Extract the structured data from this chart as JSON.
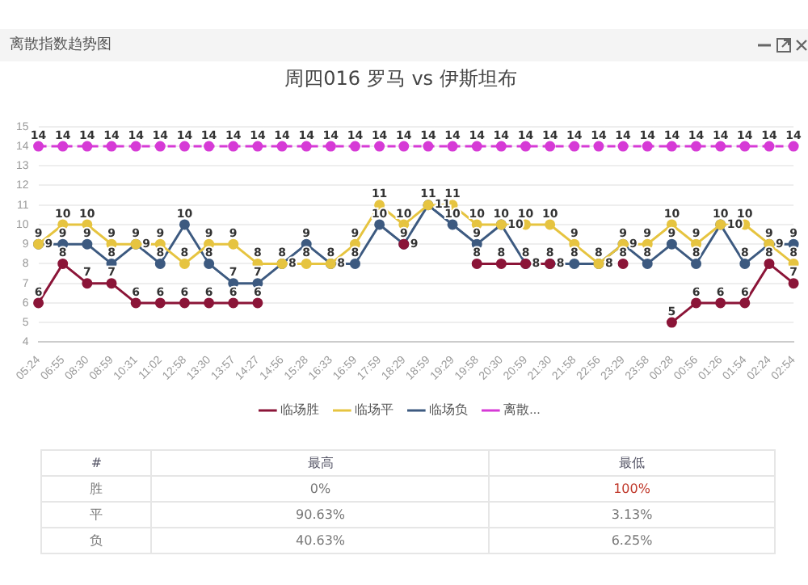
{
  "chart_data": [
    {
      "type": "line",
      "title": "周四016 罗马 vs 伊斯坦布",
      "annotations": [
        "离散指数趋势图"
      ],
      "categories": [
        "05:24",
        "06:55",
        "08:30",
        "08:59",
        "10:31",
        "11:02",
        "12:58",
        "13:30",
        "13:57",
        "14:27",
        "14:56",
        "15:28",
        "16:33",
        "16:59",
        "17:59",
        "18:29",
        "18:59",
        "19:29",
        "19:58",
        "20:30",
        "20:59",
        "21:30",
        "21:58",
        "22:56",
        "23:29",
        "23:58",
        "00:28",
        "00:56",
        "01:26",
        "01:54",
        "02:24",
        "02:54"
      ],
      "series": [
        {
          "name": "临场胜",
          "color": "#8b1538",
          "values": [
            6,
            8,
            7,
            7,
            6,
            6,
            6,
            6,
            6,
            6,
            null,
            null,
            null,
            null,
            null,
            9,
            null,
            null,
            8,
            8,
            8,
            8,
            null,
            null,
            8,
            null,
            5,
            6,
            6,
            6,
            8,
            7
          ]
        },
        {
          "name": "临场平",
          "color": "#e6c440",
          "values": [
            9,
            10,
            10,
            9,
            9,
            9,
            8,
            9,
            9,
            8,
            8,
            8,
            8,
            9,
            11,
            10,
            11,
            11,
            10,
            10,
            10,
            10,
            9,
            8,
            9,
            9,
            10,
            9,
            10,
            10,
            9,
            8
          ]
        },
        {
          "name": "临场负",
          "color": "#3d5a80",
          "values": [
            9,
            9,
            9,
            8,
            9,
            8,
            10,
            8,
            7,
            7,
            8,
            9,
            8,
            8,
            10,
            9,
            11,
            10,
            9,
            10,
            8,
            8,
            8,
            8,
            9,
            8,
            9,
            8,
            10,
            8,
            9,
            9
          ]
        },
        {
          "name": "离散...",
          "color": "#d63ad6",
          "line_style": "dashed",
          "values": [
            14,
            14,
            14,
            14,
            14,
            14,
            14,
            14,
            14,
            14,
            14,
            14,
            14,
            14,
            14,
            14,
            14,
            14,
            14,
            14,
            14,
            14,
            14,
            14,
            14,
            14,
            14,
            14,
            14,
            14,
            14,
            14
          ]
        }
      ],
      "ylim": [
        4,
        15
      ],
      "yticks": [
        4,
        5,
        6,
        7,
        8,
        9,
        10,
        11,
        12,
        13,
        14,
        15
      ],
      "grid": "y",
      "legend": "bottom",
      "marker": "circle",
      "line_style": "solid",
      "data_labels": true
    },
    {
      "type": "other",
      "legend_title": "#",
      "categories": [
        "最高",
        "最低"
      ],
      "y_categories": [
        "胜",
        "平",
        "负"
      ],
      "cell_labels": [
        [
          "0%",
          "100%"
        ],
        [
          "90.63%",
          "3.13%"
        ],
        [
          "40.63%",
          "6.25%"
        ]
      ]
    }
  ]
}
